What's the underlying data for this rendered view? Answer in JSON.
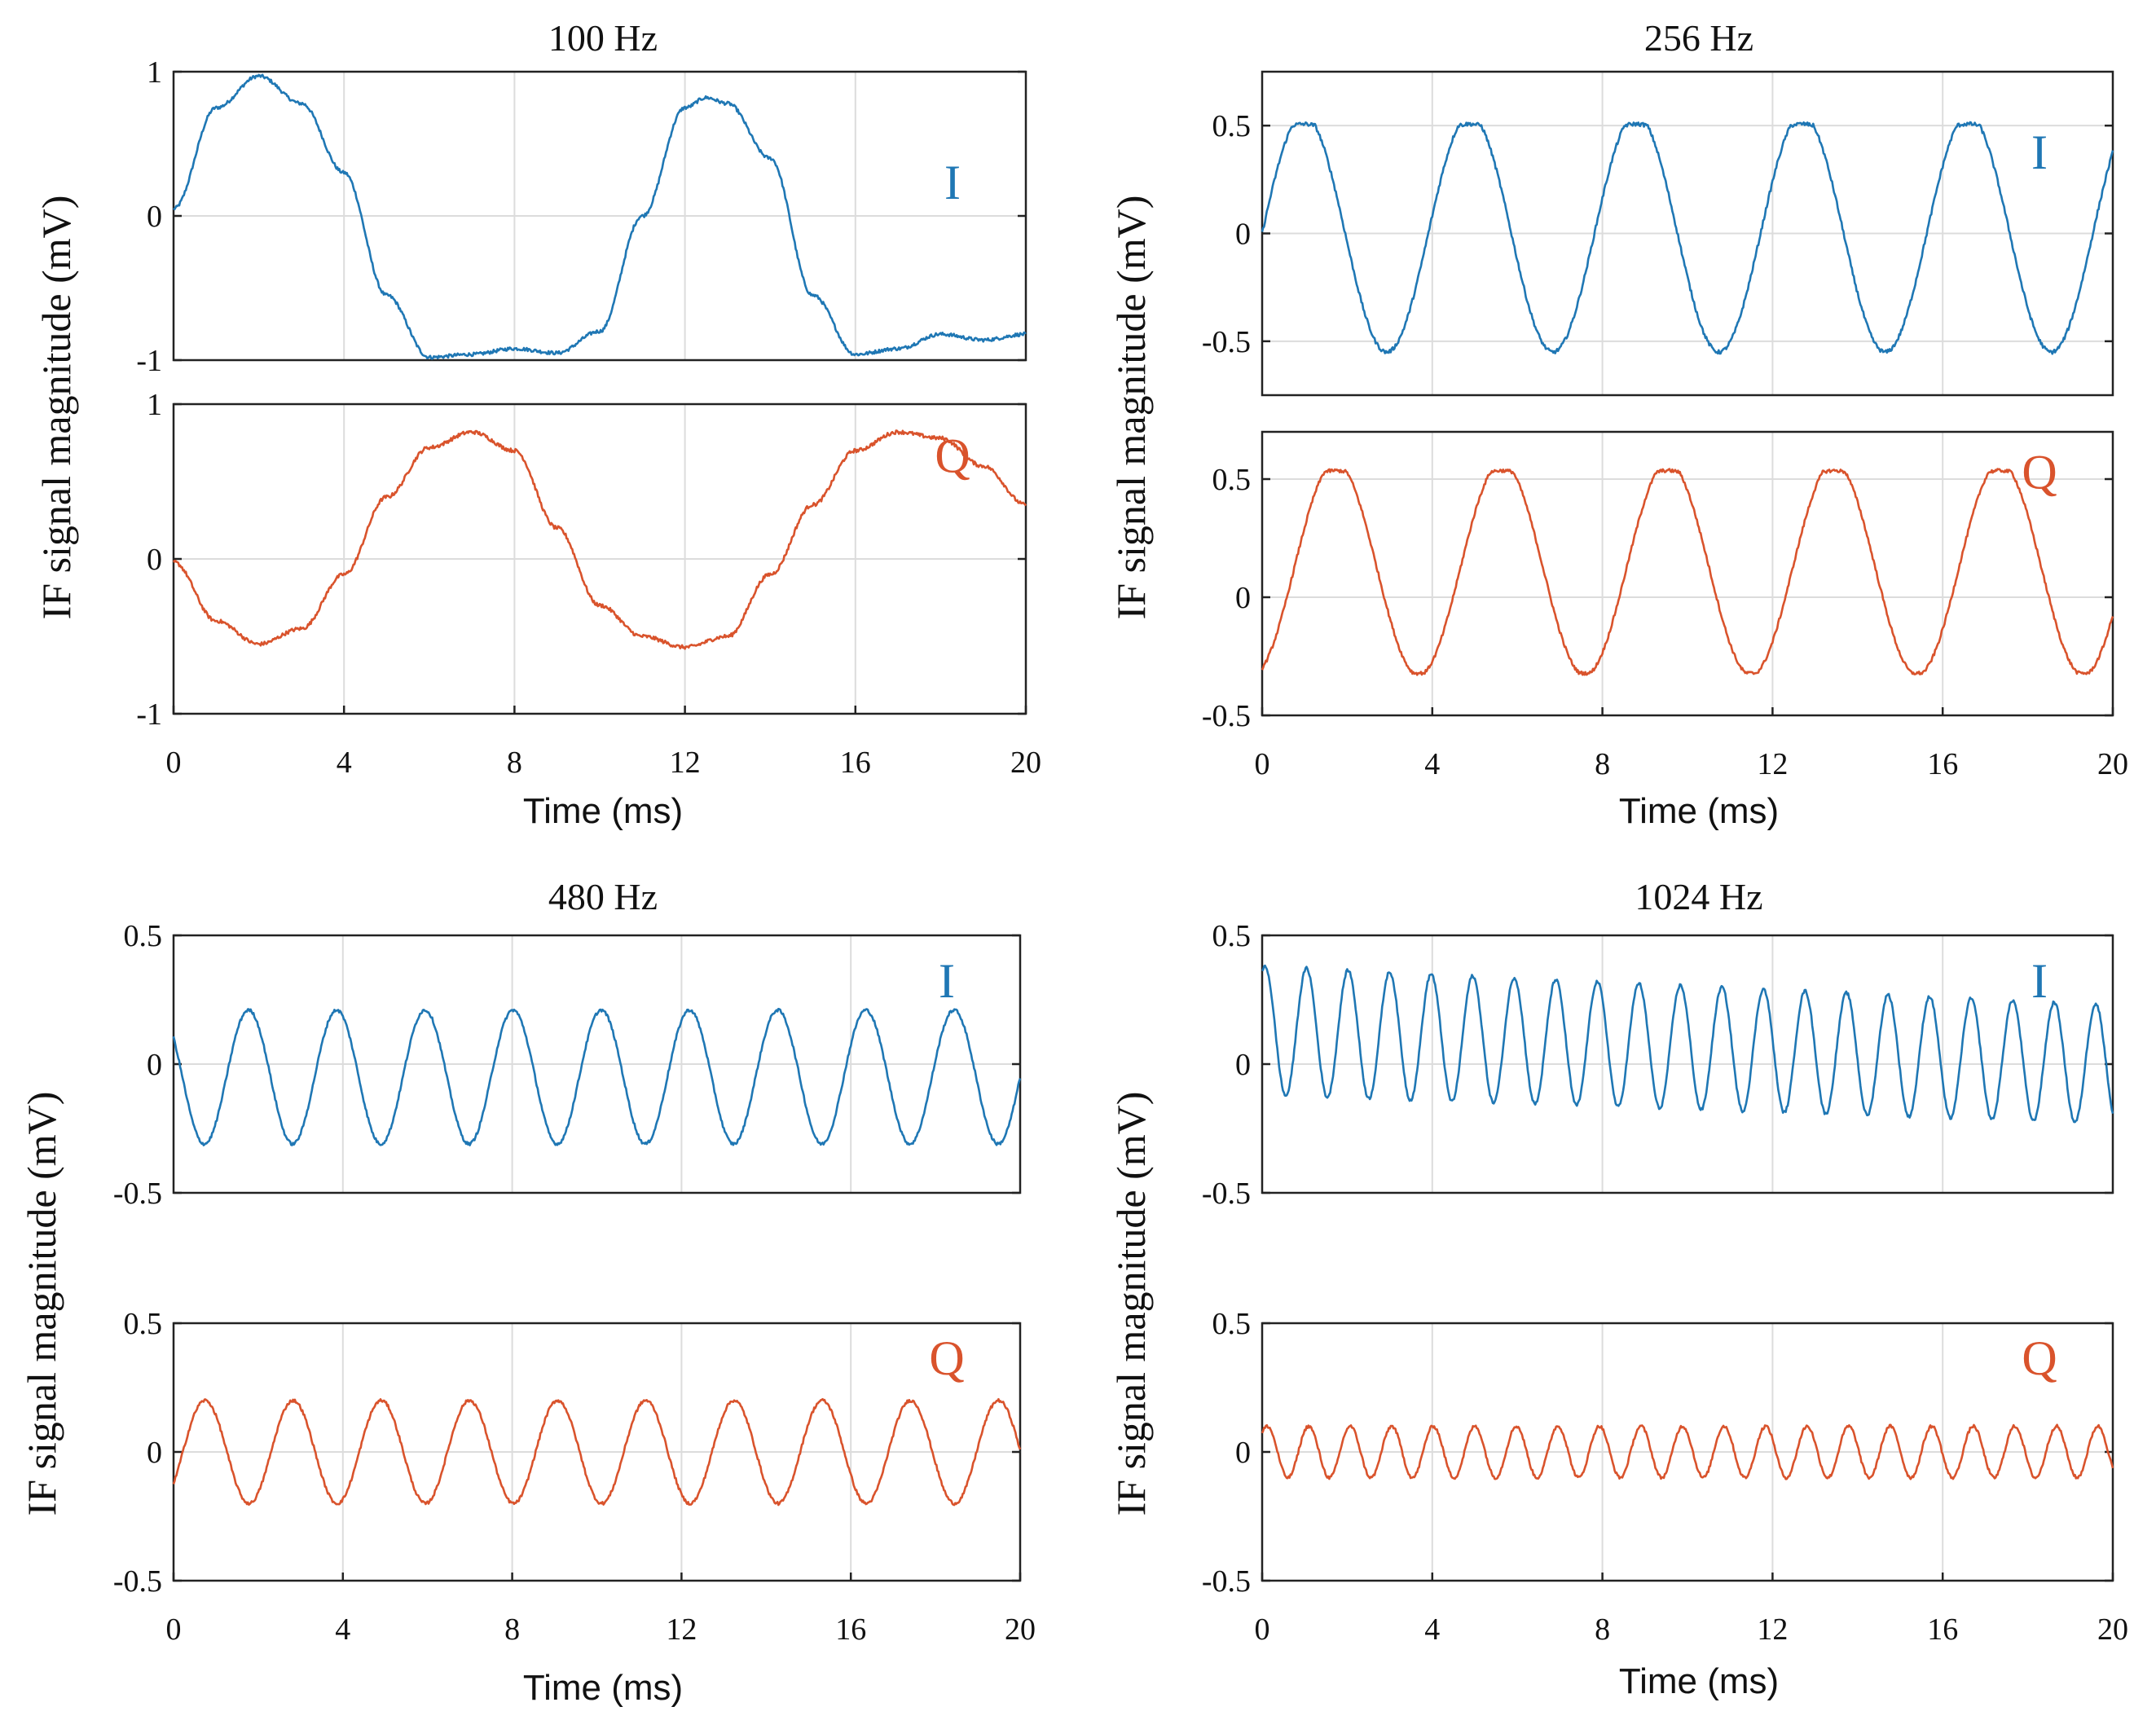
{
  "colors": {
    "I": "#1f77b4",
    "Q": "#d9532c"
  },
  "chart_data": [
    {
      "type": "line",
      "title": "100 Hz",
      "xlabel": "Time (ms)",
      "ylabel": "IF signal magnitude (mV)",
      "xlim": [
        0,
        20
      ],
      "xticks": [
        "0",
        "4",
        "8",
        "12",
        "16",
        "20"
      ],
      "grid": true,
      "top": {
        "ylim": [
          -1,
          1
        ],
        "yticks": [
          "-1",
          "0",
          "1"
        ],
        "label": "I"
      },
      "bottom": {
        "ylim": [
          -1,
          1
        ],
        "yticks": [
          "-1",
          "0",
          "1"
        ],
        "label": "Q"
      },
      "series": [
        {
          "name": "I",
          "x": [
            0,
            1,
            2,
            3,
            4,
            5,
            6,
            7,
            8,
            9,
            10,
            11,
            12,
            12.5,
            13,
            14,
            15,
            16,
            17,
            18,
            19,
            20
          ],
          "values": [
            0.05,
            0.75,
            0.97,
            0.78,
            0.3,
            -0.55,
            -0.98,
            -0.96,
            -0.92,
            -0.95,
            -0.8,
            0.0,
            0.75,
            0.82,
            0.78,
            0.4,
            -0.55,
            -0.96,
            -0.92,
            -0.82,
            -0.86,
            -0.82
          ]
        },
        {
          "name": "Q",
          "x": [
            0,
            1,
            2,
            3,
            4,
            5,
            6,
            7,
            8,
            9,
            10,
            11,
            12,
            13,
            14,
            15,
            16,
            17,
            18,
            19,
            20
          ],
          "values": [
            -0.02,
            -0.4,
            -0.55,
            -0.45,
            -0.1,
            0.4,
            0.72,
            0.82,
            0.7,
            0.2,
            -0.3,
            -0.5,
            -0.57,
            -0.5,
            -0.1,
            0.35,
            0.7,
            0.82,
            0.78,
            0.6,
            0.35
          ]
        }
      ]
    },
    {
      "type": "line",
      "title": "256 Hz",
      "xlabel": "Time (ms)",
      "ylabel": "IF signal magnitude (mV)",
      "xlim": [
        0,
        20
      ],
      "xticks": [
        "0",
        "4",
        "8",
        "12",
        "16",
        "20"
      ],
      "grid": true,
      "top": {
        "ylim": [
          -0.75,
          0.75
        ],
        "yticks": [
          "-0.5",
          "0",
          "0.5"
        ],
        "label": "I"
      },
      "bottom": {
        "ylim": [
          -0.5,
          0.7
        ],
        "yticks": [
          "-0.5",
          "0",
          "0.5"
        ],
        "label": "Q"
      },
      "series": [
        {
          "name": "I",
          "frequency_khz": 0.256,
          "amplitude": 0.55,
          "offset": 0.0,
          "phase_ms": 0.0,
          "clip_high": 0.5,
          "clip_low": -0.55
        },
        {
          "name": "Q",
          "frequency_khz": 0.256,
          "amplitude": 0.45,
          "offset": 0.12,
          "phase_ms": 0.75,
          "clip_high": 0.53,
          "clip_low": -0.32
        }
      ]
    },
    {
      "type": "line",
      "title": "480 Hz",
      "xlabel": "Time (ms)",
      "ylabel": "IF signal magnitude (mV)",
      "xlim": [
        0,
        20
      ],
      "xticks": [
        "0",
        "4",
        "8",
        "12",
        "16",
        "20"
      ],
      "grid": true,
      "top": {
        "ylim": [
          -0.5,
          0.5
        ],
        "yticks": [
          "-0.5",
          "0",
          "0.5"
        ],
        "label": "I"
      },
      "bottom": {
        "ylim": [
          -0.5,
          0.5
        ],
        "yticks": [
          "-0.5",
          "0.5",
          "0"
        ],
        "label": "Q"
      },
      "series": [
        {
          "name": "I",
          "frequency_khz": 0.48,
          "amplitude": 0.26,
          "offset": -0.05,
          "phase_ms": 1.25
        },
        {
          "name": "Q",
          "frequency_khz": 0.48,
          "amplitude": 0.2,
          "offset": 0.0,
          "phase_ms": 0.22
        }
      ]
    },
    {
      "type": "line",
      "title": "1024 Hz",
      "xlabel": "Time (ms)",
      "ylabel": "IF signal magnitude (mV)",
      "xlim": [
        0,
        20
      ],
      "xticks": [
        "0",
        "4",
        "8",
        "12",
        "16",
        "20"
      ],
      "grid": true,
      "top": {
        "ylim": [
          -0.5,
          0.5
        ],
        "yticks": [
          "-0.5",
          "0",
          "0.5"
        ],
        "label": "I"
      },
      "bottom": {
        "ylim": [
          -0.5,
          0.5
        ],
        "yticks": [
          "-0.5",
          "0.5",
          "0"
        ],
        "label": "Q"
      },
      "series": [
        {
          "name": "I",
          "frequency_khz": 1.024,
          "amplitude": 0.25,
          "offset": 0.13,
          "phase_ms": 0.8,
          "amp_end": 0.23,
          "offset_end": 0.0
        },
        {
          "name": "Q",
          "frequency_khz": 1.024,
          "amplitude": 0.1,
          "offset": 0.0,
          "phase_ms": 0.85
        }
      ]
    }
  ]
}
